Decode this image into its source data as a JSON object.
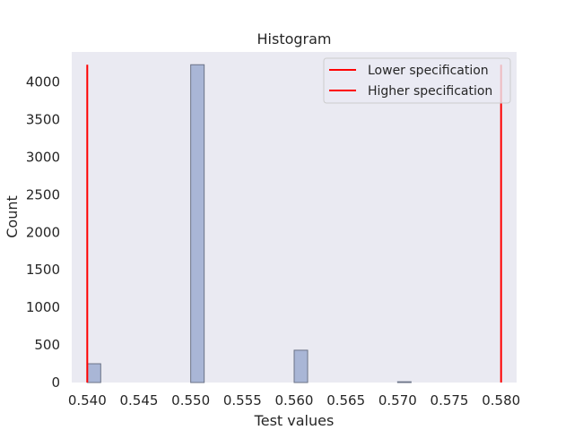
{
  "chart_data": {
    "type": "bar",
    "title": "Histogram",
    "xlabel": "Test values",
    "ylabel": "Count",
    "xlim": [
      0.5385,
      0.5815
    ],
    "ylim": [
      0,
      4400
    ],
    "x_ticks": [
      "0.540",
      "0.545",
      "0.550",
      "0.555",
      "0.560",
      "0.565",
      "0.570",
      "0.575",
      "0.580"
    ],
    "y_ticks": [
      "0",
      "500",
      "1000",
      "1500",
      "2000",
      "2500",
      "3000",
      "3500",
      "4000"
    ],
    "bins": [
      {
        "start": 0.54,
        "end": 0.5413,
        "count": 250
      },
      {
        "start": 0.55,
        "end": 0.5513,
        "count": 4230
      },
      {
        "start": 0.56,
        "end": 0.5613,
        "count": 430
      },
      {
        "start": 0.57,
        "end": 0.5713,
        "count": 10
      }
    ],
    "bar_color": "#a9b6d6",
    "bar_edge_color": "#6b7387",
    "background_color": "#eaeaf2",
    "grid": false,
    "spec_lines": [
      {
        "name": "Lower specification",
        "x": 0.54,
        "y_range": [
          0,
          4230
        ],
        "color": "#ff0000"
      },
      {
        "name": "Higher specification",
        "x": 0.58,
        "y_range": [
          0,
          4230
        ],
        "color": "#ff0000"
      }
    ],
    "legend": {
      "placement": "top-right",
      "entries": [
        "Lower specification",
        "Higher specification"
      ]
    }
  }
}
